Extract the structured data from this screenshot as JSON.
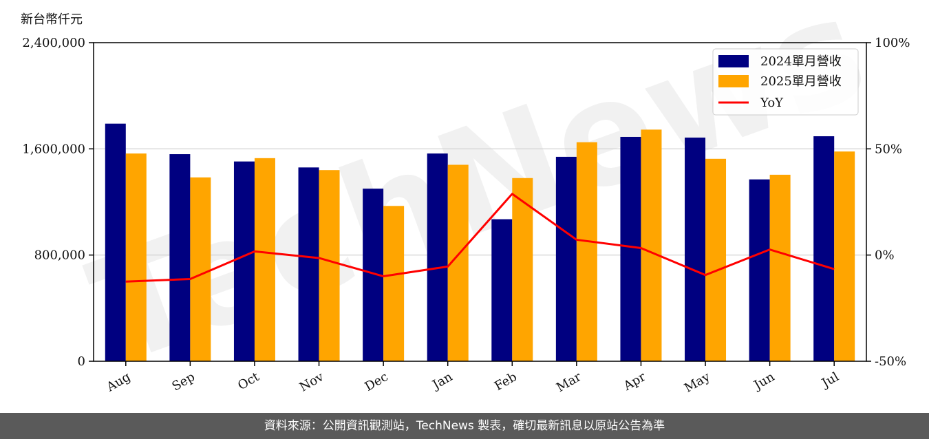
{
  "chart_data": {
    "type": "bar",
    "categories": [
      "Aug",
      "Sep",
      "Oct",
      "Nov",
      "Dec",
      "Jan",
      "Feb",
      "Mar",
      "Apr",
      "May",
      "Jun",
      "Jul"
    ],
    "series": [
      {
        "name": "2024單月營收",
        "type": "bar",
        "axis": "left",
        "color": "#000080",
        "values": [
          1790000,
          1560000,
          1505000,
          1460000,
          1300000,
          1565000,
          1070000,
          1540000,
          1690000,
          1685000,
          1370000,
          1695000
        ]
      },
      {
        "name": "2025單月營收",
        "type": "bar",
        "axis": "left",
        "color": "#FFA500",
        "values": [
          1565000,
          1385000,
          1530000,
          1440000,
          1170000,
          1480000,
          1380000,
          1650000,
          1745000,
          1525000,
          1405000,
          1580000
        ]
      },
      {
        "name": "YoY",
        "type": "line",
        "axis": "right",
        "color": "#FF0000",
        "values": [
          -12.5,
          -11.3,
          1.7,
          -1.4,
          -10.0,
          -5.4,
          28.8,
          7.2,
          3.3,
          -9.4,
          2.6,
          -6.6
        ]
      }
    ],
    "ylabel": "新台幣仟元",
    "ylim": [
      0,
      2400000
    ],
    "yticks": [
      "0",
      "800,000",
      "1,600,000",
      "2,400,000"
    ],
    "ylim_right": [
      -50,
      100
    ],
    "yticks_right": [
      "-50%",
      "0%",
      "50%",
      "100%"
    ],
    "legend_position": "top-right",
    "grid": "horizontal"
  },
  "watermark": "TechNews",
  "footer": {
    "source_text": "資料來源：公開資訊觀測站，TechNews 製表，確切最新訊息以原站公告為準"
  }
}
